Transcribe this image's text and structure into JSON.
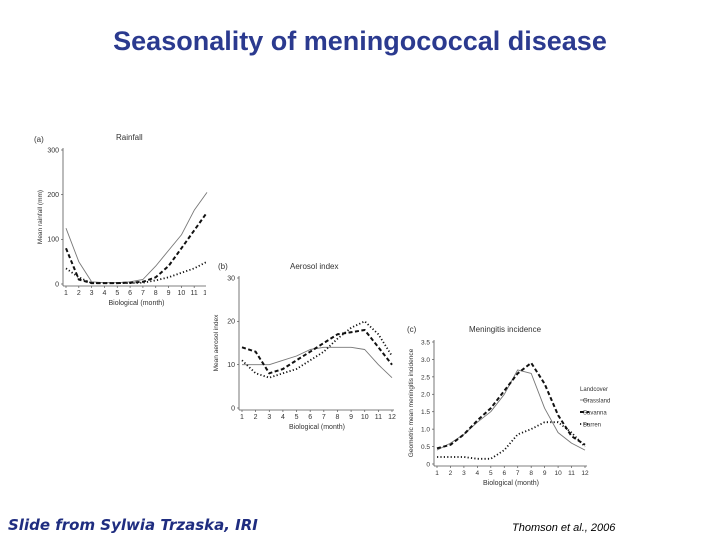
{
  "slide": {
    "title": "Seasonality of meningococcal disease",
    "footer_left": "Slide from Sylwia Trzaska, IRI",
    "footer_right": "Thomson et al., 2006"
  },
  "chart_data": [
    {
      "type": "line",
      "panel_label": "(a)",
      "title": "Rainfall",
      "xlabel": "Biological (month)",
      "ylabel": "Mean rainfall (mm)",
      "x": [
        1,
        2,
        3,
        4,
        5,
        6,
        7,
        8,
        9,
        10,
        11,
        12
      ],
      "xticks": [
        "1",
        "2",
        "3",
        "4",
        "5",
        "6",
        "7",
        "8",
        "9",
        "10",
        "11",
        "12"
      ],
      "ylim": [
        0,
        300
      ],
      "yticks": [
        "0",
        "100",
        "200",
        "300"
      ],
      "series": [
        {
          "style": "thin",
          "values": [
            125,
            50,
            5,
            3,
            3,
            5,
            10,
            40,
            75,
            110,
            165,
            205
          ]
        },
        {
          "style": "dashed",
          "values": [
            80,
            10,
            2,
            2,
            2,
            3,
            5,
            15,
            40,
            80,
            120,
            160
          ]
        },
        {
          "style": "dotted",
          "values": [
            35,
            15,
            2,
            2,
            2,
            2,
            3,
            8,
            15,
            25,
            35,
            50
          ]
        }
      ]
    },
    {
      "type": "line",
      "panel_label": "(b)",
      "title": "Aerosol index",
      "xlabel": "Biological (month)",
      "ylabel": "Mean aerosol index",
      "x": [
        1,
        2,
        3,
        4,
        5,
        6,
        7,
        8,
        9,
        10,
        11,
        12
      ],
      "xticks": [
        "1",
        "2",
        "3",
        "4",
        "5",
        "6",
        "7",
        "8",
        "9",
        "10",
        "11",
        "12"
      ],
      "ylim": [
        0,
        30
      ],
      "yticks": [
        "0",
        "10",
        "20",
        "30"
      ],
      "series": [
        {
          "style": "thin",
          "values": [
            10,
            10,
            10,
            11,
            12,
            13.5,
            14,
            14,
            14,
            13.5,
            10,
            7
          ]
        },
        {
          "style": "dashed",
          "values": [
            14,
            13,
            8,
            9,
            11,
            13,
            15,
            17,
            17.5,
            18,
            14,
            10
          ]
        },
        {
          "style": "dotted",
          "values": [
            11,
            8,
            7,
            8,
            9,
            11,
            13,
            16,
            18.5,
            20,
            17,
            12
          ]
        }
      ]
    },
    {
      "type": "line",
      "panel_label": "(c)",
      "title": "Meningitis incidence",
      "xlabel": "Biological (month)",
      "ylabel": "Geometric mean meningitis incidence",
      "x": [
        1,
        2,
        3,
        4,
        5,
        6,
        7,
        8,
        9,
        10,
        11,
        12
      ],
      "xticks": [
        "1",
        "2",
        "3",
        "4",
        "5",
        "6",
        "7",
        "8",
        "9",
        "10",
        "11",
        "12"
      ],
      "ylim": [
        0,
        3.5
      ],
      "yticks": [
        "0",
        "0.5",
        "1.0",
        "1.5",
        "2.0",
        "2.5",
        "3.0",
        "3.5"
      ],
      "legend_title": "Landcover",
      "legend_position": "right",
      "series": [
        {
          "name": "Grassland",
          "style": "thin",
          "values": [
            0.4,
            0.6,
            0.85,
            1.2,
            1.5,
            2.0,
            2.7,
            2.6,
            1.6,
            0.9,
            0.6,
            0.4
          ]
        },
        {
          "name": "Savanna",
          "style": "dashed",
          "values": [
            0.45,
            0.55,
            0.85,
            1.25,
            1.6,
            2.1,
            2.6,
            2.9,
            2.3,
            1.4,
            0.8,
            0.55
          ]
        },
        {
          "name": "Barren",
          "style": "dotted",
          "values": [
            0.2,
            0.2,
            0.2,
            0.15,
            0.15,
            0.4,
            0.85,
            1.0,
            1.2,
            1.2,
            0.9,
            0.5
          ]
        }
      ]
    }
  ]
}
